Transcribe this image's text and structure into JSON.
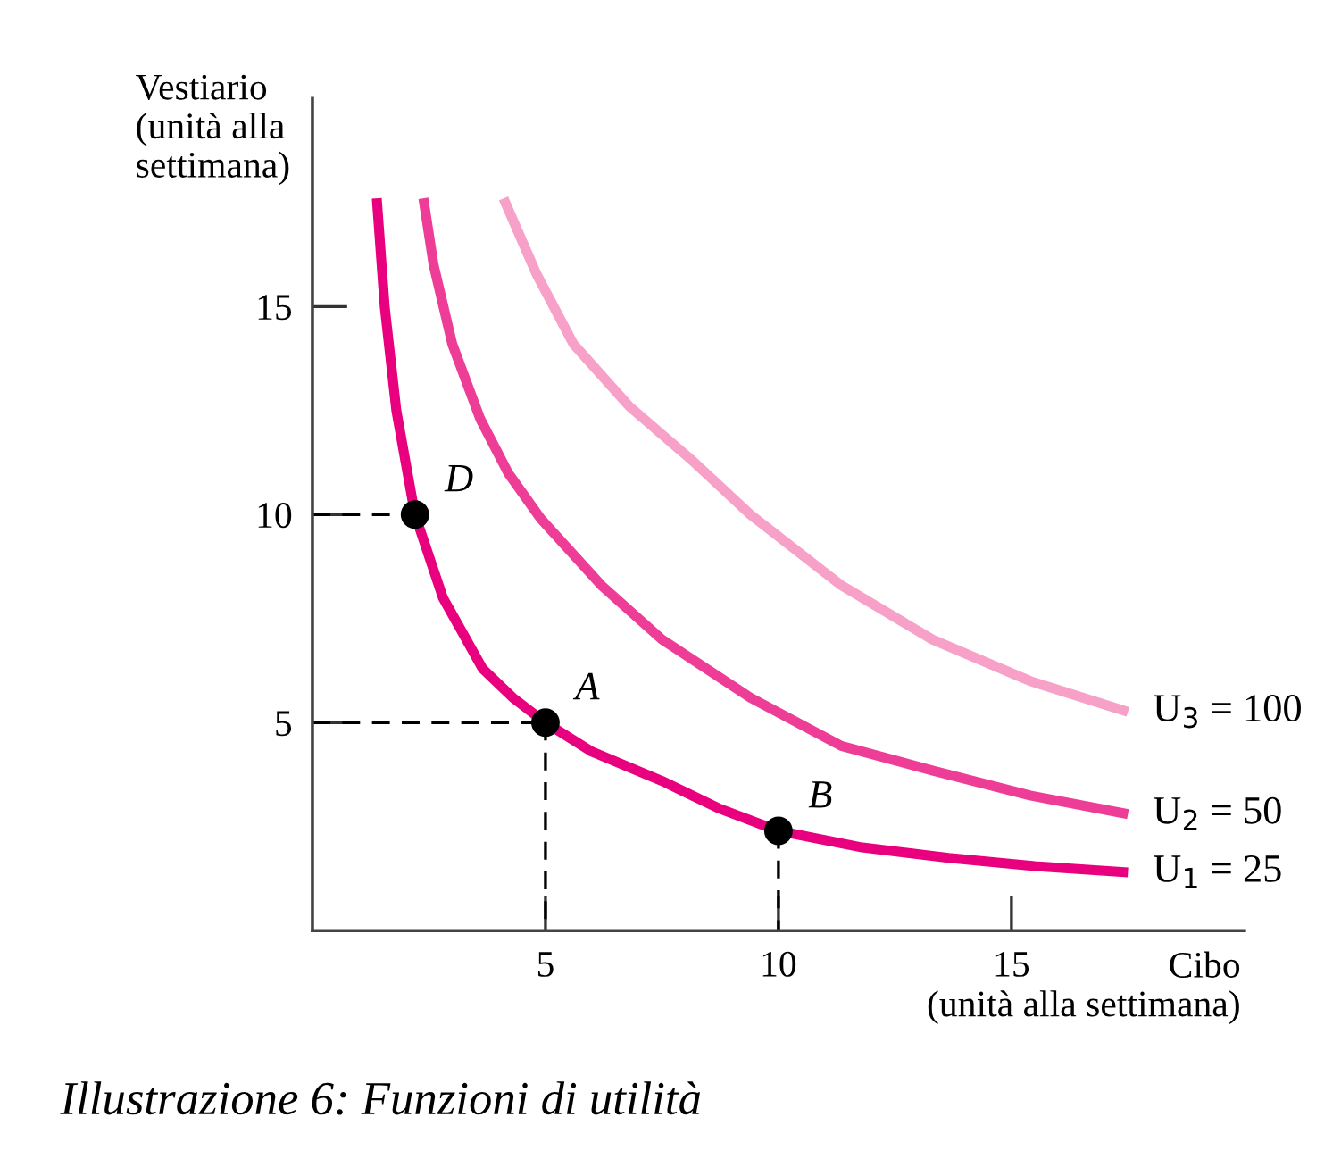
{
  "chart_data": {
    "type": "line",
    "xlabel": "Cibo\n(unità alla settimana)",
    "ylabel": "Vestiario\n(unità alla\nsettimana)",
    "xlim": [
      0,
      20
    ],
    "ylim": [
      0,
      20
    ],
    "xticks": [
      5,
      10,
      15
    ],
    "yticks": [
      5,
      10,
      15
    ],
    "grid": false,
    "legend": false,
    "series": [
      {
        "name": "U$_{1}$ = 25",
        "color": "#e8007f",
        "x": [
          1.38,
          1.55,
          1.8,
          2.2,
          2.8,
          3.65,
          4.3,
          5,
          6,
          7.5,
          8.7,
          10,
          11.8,
          13.65,
          15.5,
          17.5
        ],
        "values": [
          17.6,
          15,
          12.5,
          10,
          8,
          6.3,
          5.6,
          5,
          4.3,
          3.6,
          2.95,
          2.4,
          2.0,
          1.75,
          1.55,
          1.4
        ]
      },
      {
        "name": "U$_{2}$ = 50",
        "color": "#ee3d96",
        "x": [
          2.38,
          2.6,
          3.0,
          3.6,
          4.2,
          4.9,
          6.2,
          7.5,
          9.4,
          11.35,
          13.3,
          15.4,
          17.5
        ],
        "values": [
          17.6,
          16,
          14.1,
          12.3,
          11,
          9.9,
          8.3,
          7.0,
          5.6,
          4.44,
          3.85,
          3.25,
          2.8
        ]
      },
      {
        "name": "U$_{3}$ = 100",
        "color": "#f7a0c8",
        "x": [
          4.1,
          4.8,
          5.6,
          6.8,
          8.15,
          9.4,
          11.35,
          13.3,
          15.4,
          17.5
        ],
        "values": [
          17.6,
          15.8,
          14.1,
          12.6,
          11.3,
          10.0,
          8.3,
          7.0,
          6.0,
          5.26
        ]
      },
      {
        "color": "#000000",
        "line_style": "dashed",
        "x": [
          0,
          2.2
        ],
        "values": [
          10,
          10
        ]
      },
      {
        "color": "#000000",
        "line_style": "dashed",
        "x": [
          0,
          5
        ],
        "values": [
          5,
          5
        ]
      },
      {
        "color": "#000000",
        "line_style": "dashed",
        "x": [
          5,
          5
        ],
        "values": [
          5,
          0
        ]
      },
      {
        "color": "#000000",
        "line_style": "dashed",
        "x": [
          10,
          10
        ],
        "values": [
          2.4,
          0
        ]
      },
      {
        "type": "scatter",
        "color": "#000000",
        "marker": "circle",
        "x": [
          2.2,
          5,
          10
        ],
        "values": [
          10,
          5,
          2.4
        ]
      }
    ],
    "annotations": [
      {
        "text": "D",
        "x": 2.2,
        "y": 10
      },
      {
        "text": "A",
        "x": 5,
        "y": 5
      },
      {
        "text": "B",
        "x": 10,
        "y": 2.4
      },
      "Illustrazione 6: Funzioni di utilità"
    ]
  }
}
